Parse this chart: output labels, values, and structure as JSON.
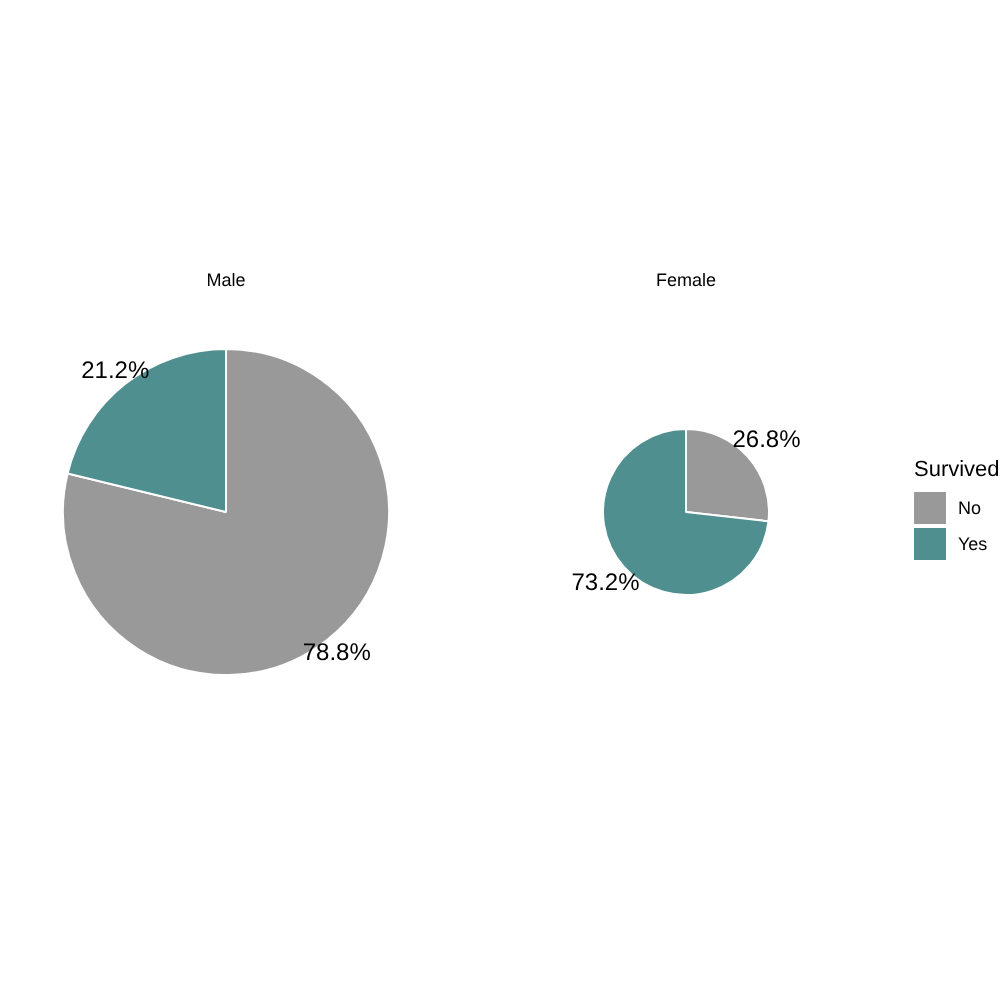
{
  "chart_data": {
    "type": "pie",
    "categories": [
      "No",
      "Yes"
    ],
    "colors": [
      "#999999",
      "#4f8f8f"
    ],
    "legend": "right",
    "legend_title": "Survived",
    "series": [
      {
        "name": "Male",
        "values": [
          78.8,
          21.2
        ],
        "value_labels": [
          "78.8%",
          "21.2%"
        ]
      },
      {
        "name": "Female",
        "values": [
          26.8,
          73.2
        ],
        "value_labels": [
          "26.8%",
          "73.2%"
        ]
      }
    ]
  }
}
